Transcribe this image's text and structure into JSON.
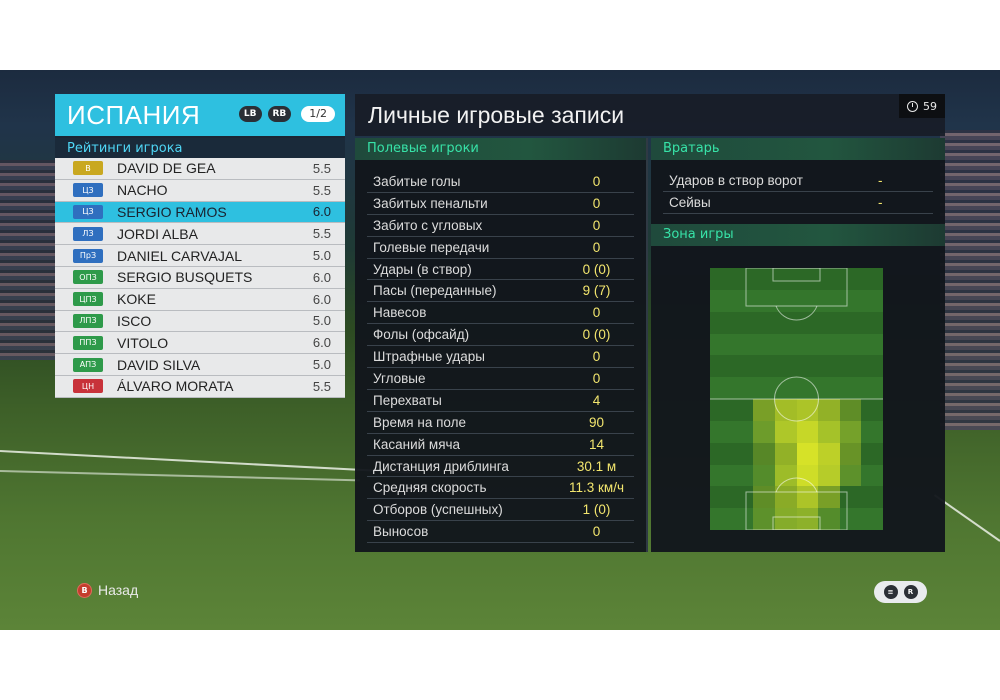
{
  "team": {
    "name": "ИСПАНИЯ",
    "lb_label": "LB",
    "rb_label": "RB",
    "page": "1/2",
    "ratings_title": "Рейтинги игрока",
    "players": [
      {
        "pos": "В",
        "name": "DAVID DE GEA",
        "rating": "5.5",
        "color": "#c9a820",
        "selected": false
      },
      {
        "pos": "ЦЗ",
        "name": "NACHO",
        "rating": "5.5",
        "color": "#2f6fbf",
        "selected": false
      },
      {
        "pos": "ЦЗ",
        "name": "SERGIO RAMOS",
        "rating": "6.0",
        "color": "#2f6fbf",
        "selected": true
      },
      {
        "pos": "ЛЗ",
        "name": "JORDI ALBA",
        "rating": "5.5",
        "color": "#2f6fbf",
        "selected": false
      },
      {
        "pos": "ПрЗ",
        "name": "DANIEL CARVAJAL",
        "rating": "5.0",
        "color": "#2f6fbf",
        "selected": false
      },
      {
        "pos": "ОПЗ",
        "name": "SERGIO BUSQUETS",
        "rating": "6.0",
        "color": "#2e9a4a",
        "selected": false
      },
      {
        "pos": "ЦПЗ",
        "name": "KOKE",
        "rating": "6.0",
        "color": "#2e9a4a",
        "selected": false
      },
      {
        "pos": "ЛПЗ",
        "name": "ISCO",
        "rating": "5.0",
        "color": "#2e9a4a",
        "selected": false
      },
      {
        "pos": "ППЗ",
        "name": "VITOLO",
        "rating": "6.0",
        "color": "#2e9a4a",
        "selected": false
      },
      {
        "pos": "АПЗ",
        "name": "DAVID SILVA",
        "rating": "5.0",
        "color": "#2e9a4a",
        "selected": false
      },
      {
        "pos": "ЦН",
        "name": "ÁLVARO MORATA",
        "rating": "5.5",
        "color": "#c8323a",
        "selected": false
      }
    ]
  },
  "main": {
    "title": "Личные игровые записи",
    "timer": "59",
    "field_section": "Полевые игроки",
    "field_stats": [
      {
        "label": "Забитые голы",
        "value": "0"
      },
      {
        "label": "Забитых пенальти",
        "value": "0"
      },
      {
        "label": "Забито с угловых",
        "value": "0"
      },
      {
        "label": "Голевые передачи",
        "value": "0"
      },
      {
        "label": "Удары (в створ)",
        "value": "0 (0)"
      },
      {
        "label": "Пасы (переданные)",
        "value": "9 (7)"
      },
      {
        "label": "Навесов",
        "value": "0"
      },
      {
        "label": "Фолы (офсайд)",
        "value": "0 (0)"
      },
      {
        "label": "Штрафные удары",
        "value": "0"
      },
      {
        "label": "Угловые",
        "value": "0"
      },
      {
        "label": "Перехваты",
        "value": "4"
      },
      {
        "label": "Время на поле",
        "value": "90"
      },
      {
        "label": "Касаний мяча",
        "value": "14"
      },
      {
        "label": "Дистанция дриблинга",
        "value": "30.1 м"
      },
      {
        "label": "Средняя скорость",
        "value": "11.3 км/ч"
      },
      {
        "label": "Отборов (успешных)",
        "value": "1 (0)"
      },
      {
        "label": "Выносов",
        "value": "0"
      }
    ],
    "gk_section": "Вратарь",
    "gk_stats": [
      {
        "label": "Ударов в створ ворот",
        "value": "-"
      },
      {
        "label": "Сейвы",
        "value": "-"
      }
    ],
    "zone_section": "Зона игры",
    "heatmap": {
      "cols": 8,
      "rows": 12,
      "intensity": [
        [
          0,
          0,
          0,
          0,
          0,
          0,
          0,
          0
        ],
        [
          0,
          0,
          0,
          0,
          0,
          0,
          0,
          0
        ],
        [
          0,
          0,
          0,
          0,
          0,
          0,
          0,
          0
        ],
        [
          0,
          0,
          0,
          0,
          0,
          0,
          0,
          0
        ],
        [
          0,
          0,
          0,
          0,
          0,
          0,
          0,
          0
        ],
        [
          0,
          0,
          0,
          0,
          0,
          0,
          0,
          0
        ],
        [
          0,
          0,
          0.45,
          0.7,
          0.75,
          0.6,
          0.3,
          0
        ],
        [
          0,
          0,
          0.35,
          0.75,
          0.9,
          0.7,
          0.4,
          0
        ],
        [
          0,
          0,
          0.25,
          0.6,
          1,
          0.85,
          0.35,
          0
        ],
        [
          0,
          0,
          0.2,
          0.65,
          0.95,
          0.8,
          0.25,
          0
        ],
        [
          0,
          0,
          0.3,
          0.55,
          0.75,
          0.45,
          0,
          0
        ],
        [
          0,
          0,
          0.25,
          0.5,
          0.55,
          0.2,
          0,
          0
        ]
      ]
    }
  },
  "footer": {
    "back_label": "Назад",
    "b_icon": "B",
    "r_icon": "R"
  }
}
